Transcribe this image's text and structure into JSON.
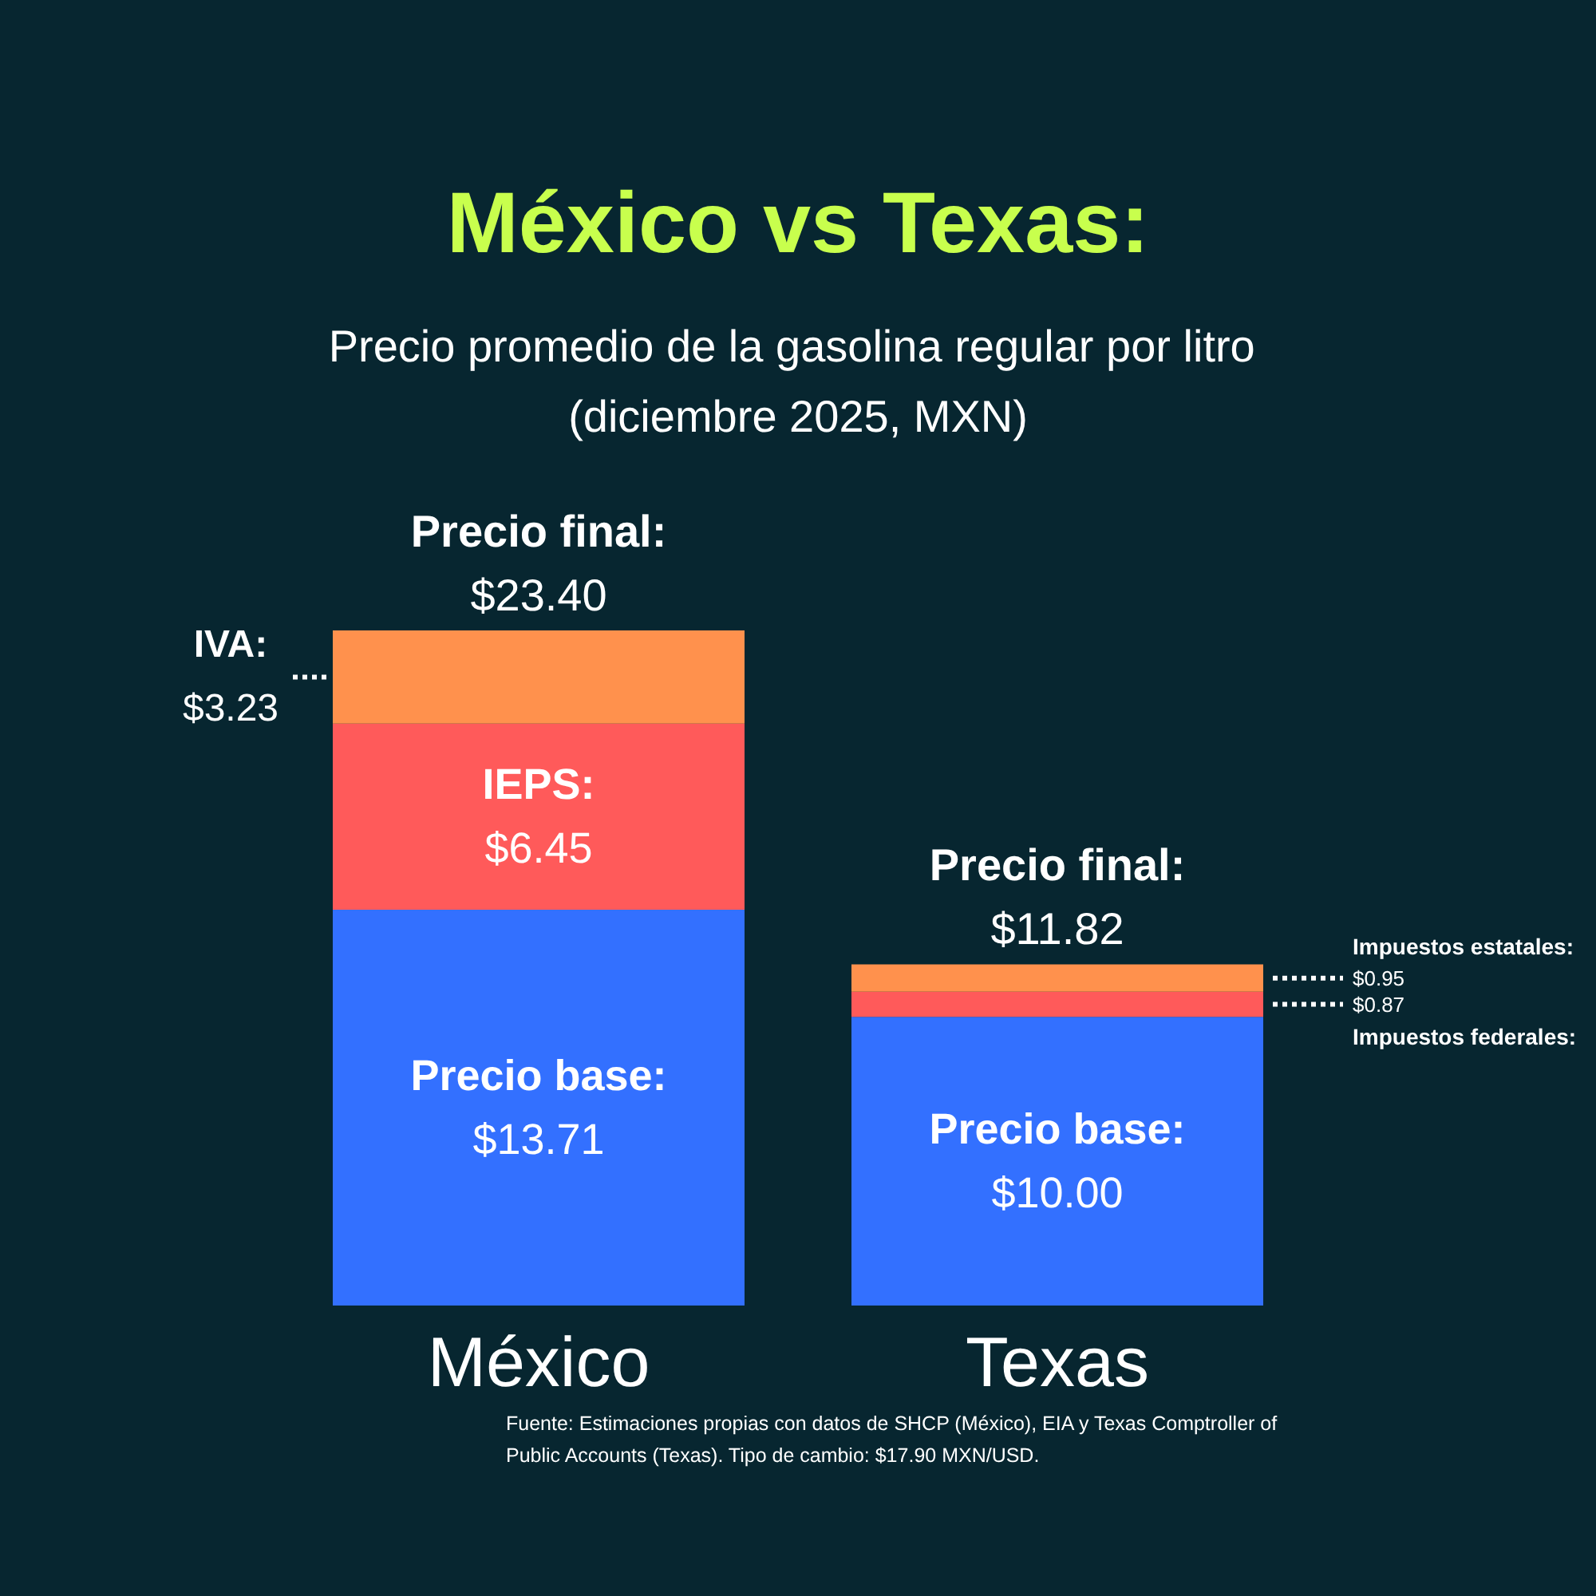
{
  "chart_data": {
    "type": "bar",
    "title": "México vs Texas:",
    "subtitle": "Precio promedio de la gasolina regular por litro (diciembre 2025, MXN)",
    "categories": [
      "México",
      "Texas"
    ],
    "stacked": true,
    "grid": false,
    "series": [
      {
        "color": "#3370ff",
        "values": [
          13.71,
          10.0
        ],
        "value_labels": [
          "$13.71",
          "$10.00"
        ]
      },
      {
        "color": "#ff5a5a",
        "values": [
          6.45,
          0.87
        ],
        "value_labels": [
          "$6.45",
          "$0.87"
        ]
      },
      {
        "color": "#ff914d",
        "values": [
          3.23,
          0.95
        ],
        "value_labels": [
          "$3.23",
          "$0.95"
        ]
      }
    ],
    "totals": [
      "$23.40",
      "$11.82"
    ],
    "annotations": [
      "Precio base:",
      "IEPS:",
      "IVA:",
      "Precio base:",
      "Impuestos federales:",
      "Impuestos estatales:",
      {
        "text": "Precio final:",
        "x": "México",
        "y": 23.4
      },
      {
        "text": "Precio final:",
        "x": "Texas",
        "y": 11.82
      },
      "Fuente: Estimaciones propias con datos de SHCP (México), EIA y Texas Comptroller of Public Accounts (Texas). Tipo de cambio: $17.90 MXN/USD."
    ]
  }
}
